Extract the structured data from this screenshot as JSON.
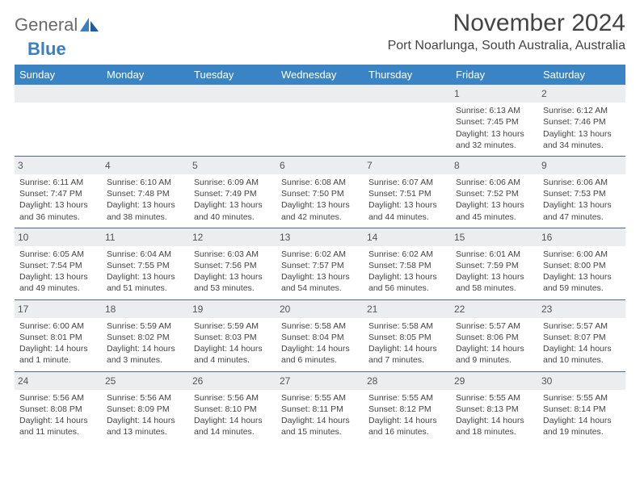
{
  "logo": {
    "text1": "General",
    "text2": "Blue"
  },
  "title": "November 2024",
  "location": "Port Noarlunga, South Australia, Australia",
  "colors": {
    "header_bg": "#3a84c6",
    "header_text": "#ffffff",
    "daynum_bg": "#ecedee",
    "cell_border": "#4a6b8a",
    "body_text": "#444444",
    "logo_blue": "#3a7fc4"
  },
  "fonts": {
    "title_pt": 30,
    "location_pt": 16,
    "header_pt": 13,
    "daynum_pt": 12,
    "cell_pt": 10.5
  },
  "day_headers": [
    "Sunday",
    "Monday",
    "Tuesday",
    "Wednesday",
    "Thursday",
    "Friday",
    "Saturday"
  ],
  "weeks": [
    [
      null,
      null,
      null,
      null,
      null,
      {
        "n": "1",
        "sunrise": "6:13 AM",
        "sunset": "7:45 PM",
        "daylight": "13 hours and 32 minutes."
      },
      {
        "n": "2",
        "sunrise": "6:12 AM",
        "sunset": "7:46 PM",
        "daylight": "13 hours and 34 minutes."
      }
    ],
    [
      {
        "n": "3",
        "sunrise": "6:11 AM",
        "sunset": "7:47 PM",
        "daylight": "13 hours and 36 minutes."
      },
      {
        "n": "4",
        "sunrise": "6:10 AM",
        "sunset": "7:48 PM",
        "daylight": "13 hours and 38 minutes."
      },
      {
        "n": "5",
        "sunrise": "6:09 AM",
        "sunset": "7:49 PM",
        "daylight": "13 hours and 40 minutes."
      },
      {
        "n": "6",
        "sunrise": "6:08 AM",
        "sunset": "7:50 PM",
        "daylight": "13 hours and 42 minutes."
      },
      {
        "n": "7",
        "sunrise": "6:07 AM",
        "sunset": "7:51 PM",
        "daylight": "13 hours and 44 minutes."
      },
      {
        "n": "8",
        "sunrise": "6:06 AM",
        "sunset": "7:52 PM",
        "daylight": "13 hours and 45 minutes."
      },
      {
        "n": "9",
        "sunrise": "6:06 AM",
        "sunset": "7:53 PM",
        "daylight": "13 hours and 47 minutes."
      }
    ],
    [
      {
        "n": "10",
        "sunrise": "6:05 AM",
        "sunset": "7:54 PM",
        "daylight": "13 hours and 49 minutes."
      },
      {
        "n": "11",
        "sunrise": "6:04 AM",
        "sunset": "7:55 PM",
        "daylight": "13 hours and 51 minutes."
      },
      {
        "n": "12",
        "sunrise": "6:03 AM",
        "sunset": "7:56 PM",
        "daylight": "13 hours and 53 minutes."
      },
      {
        "n": "13",
        "sunrise": "6:02 AM",
        "sunset": "7:57 PM",
        "daylight": "13 hours and 54 minutes."
      },
      {
        "n": "14",
        "sunrise": "6:02 AM",
        "sunset": "7:58 PM",
        "daylight": "13 hours and 56 minutes."
      },
      {
        "n": "15",
        "sunrise": "6:01 AM",
        "sunset": "7:59 PM",
        "daylight": "13 hours and 58 minutes."
      },
      {
        "n": "16",
        "sunrise": "6:00 AM",
        "sunset": "8:00 PM",
        "daylight": "13 hours and 59 minutes."
      }
    ],
    [
      {
        "n": "17",
        "sunrise": "6:00 AM",
        "sunset": "8:01 PM",
        "daylight": "14 hours and 1 minute."
      },
      {
        "n": "18",
        "sunrise": "5:59 AM",
        "sunset": "8:02 PM",
        "daylight": "14 hours and 3 minutes."
      },
      {
        "n": "19",
        "sunrise": "5:59 AM",
        "sunset": "8:03 PM",
        "daylight": "14 hours and 4 minutes."
      },
      {
        "n": "20",
        "sunrise": "5:58 AM",
        "sunset": "8:04 PM",
        "daylight": "14 hours and 6 minutes."
      },
      {
        "n": "21",
        "sunrise": "5:58 AM",
        "sunset": "8:05 PM",
        "daylight": "14 hours and 7 minutes."
      },
      {
        "n": "22",
        "sunrise": "5:57 AM",
        "sunset": "8:06 PM",
        "daylight": "14 hours and 9 minutes."
      },
      {
        "n": "23",
        "sunrise": "5:57 AM",
        "sunset": "8:07 PM",
        "daylight": "14 hours and 10 minutes."
      }
    ],
    [
      {
        "n": "24",
        "sunrise": "5:56 AM",
        "sunset": "8:08 PM",
        "daylight": "14 hours and 11 minutes."
      },
      {
        "n": "25",
        "sunrise": "5:56 AM",
        "sunset": "8:09 PM",
        "daylight": "14 hours and 13 minutes."
      },
      {
        "n": "26",
        "sunrise": "5:56 AM",
        "sunset": "8:10 PM",
        "daylight": "14 hours and 14 minutes."
      },
      {
        "n": "27",
        "sunrise": "5:55 AM",
        "sunset": "8:11 PM",
        "daylight": "14 hours and 15 minutes."
      },
      {
        "n": "28",
        "sunrise": "5:55 AM",
        "sunset": "8:12 PM",
        "daylight": "14 hours and 16 minutes."
      },
      {
        "n": "29",
        "sunrise": "5:55 AM",
        "sunset": "8:13 PM",
        "daylight": "14 hours and 18 minutes."
      },
      {
        "n": "30",
        "sunrise": "5:55 AM",
        "sunset": "8:14 PM",
        "daylight": "14 hours and 19 minutes."
      }
    ]
  ],
  "labels": {
    "sunrise": "Sunrise:",
    "sunset": "Sunset:",
    "daylight": "Daylight:"
  }
}
